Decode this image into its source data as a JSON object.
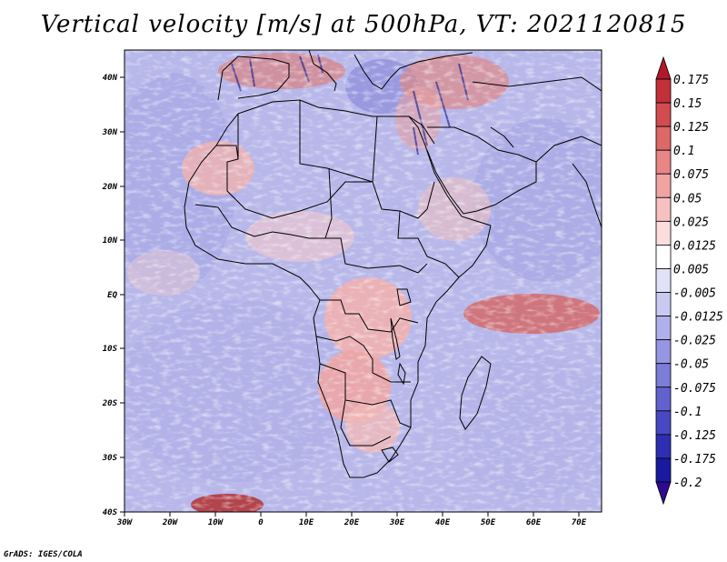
{
  "title": "Vertical velocity [m/s] at 500hPa, VT: 2021120815",
  "credit": "GrADS: IGES/COLA",
  "map": {
    "variable": "Vertical velocity",
    "units": "m/s",
    "level": "500hPa",
    "valid_time": "2021120815",
    "lon_labels": [
      "30W",
      "20W",
      "10W",
      "0",
      "10E",
      "20E",
      "30E",
      "40E",
      "50E",
      "60E",
      "70E"
    ],
    "lat_labels": [
      "40N",
      "30N",
      "20N",
      "10N",
      "EQ",
      "10S",
      "20S",
      "30S",
      "40S"
    ]
  },
  "colorbar": {
    "labels": [
      "0.175",
      "0.15",
      "0.125",
      "0.1",
      "0.075",
      "0.05",
      "0.025",
      "0.0125",
      "0.005",
      "-0.005",
      "-0.0125",
      "-0.025",
      "-0.05",
      "-0.075",
      "-0.1",
      "-0.125",
      "-0.175",
      "-0.2"
    ],
    "colors": [
      "#b2182b",
      "#c3303a",
      "#d24b4f",
      "#de6767",
      "#e88585",
      "#f0a3a3",
      "#f6c1c1",
      "#fbdddd",
      "#ffffff",
      "#e1e1f7",
      "#c9c9f1",
      "#b0b0ea",
      "#9696e2",
      "#7c7cd9",
      "#6262cf",
      "#4848c4",
      "#2e2eb4",
      "#1a1aa0",
      "#2d0a8f"
    ]
  }
}
